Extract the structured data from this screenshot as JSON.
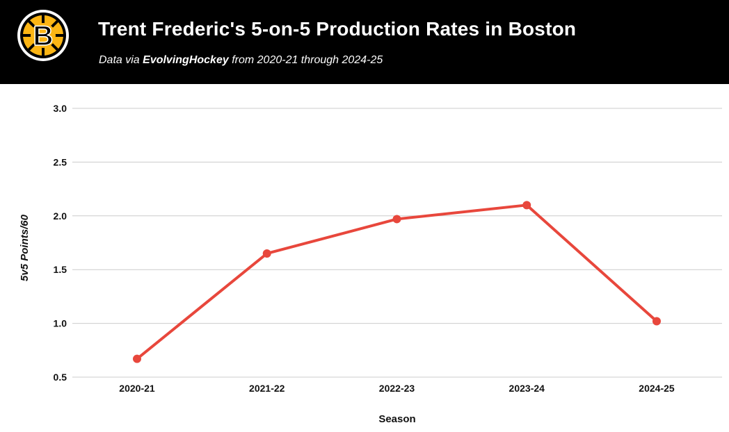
{
  "header": {
    "title": "Trent Frederic's 5-on-5 Production Rates in Boston",
    "subtitle_prefix": "Data via ",
    "subtitle_source": "EvolvingHockey",
    "subtitle_suffix": " from 2020-21 through 2024-25",
    "logo_icon": "bruins-logo-icon",
    "logo_letter": "B"
  },
  "colors": {
    "header_bg": "#000000",
    "line": "#e8473c",
    "grid": "#cccccc",
    "logo_gold": "#fcb514"
  },
  "chart_data": {
    "type": "line",
    "title": "Trent Frederic's 5-on-5 Production Rates in Boston",
    "xlabel": "Season",
    "ylabel": "5v5 Points/60",
    "categories": [
      "2020-21",
      "2021-22",
      "2022-23",
      "2023-24",
      "2024-25"
    ],
    "series": [
      {
        "values": [
          0.67,
          1.65,
          1.97,
          2.1,
          1.02
        ]
      }
    ],
    "ylim": [
      0.5,
      3.0
    ],
    "yticks": [
      "0.5",
      "1.0",
      "1.5",
      "2.0",
      "2.5",
      "3.0"
    ],
    "grid": true,
    "legend": "none"
  }
}
